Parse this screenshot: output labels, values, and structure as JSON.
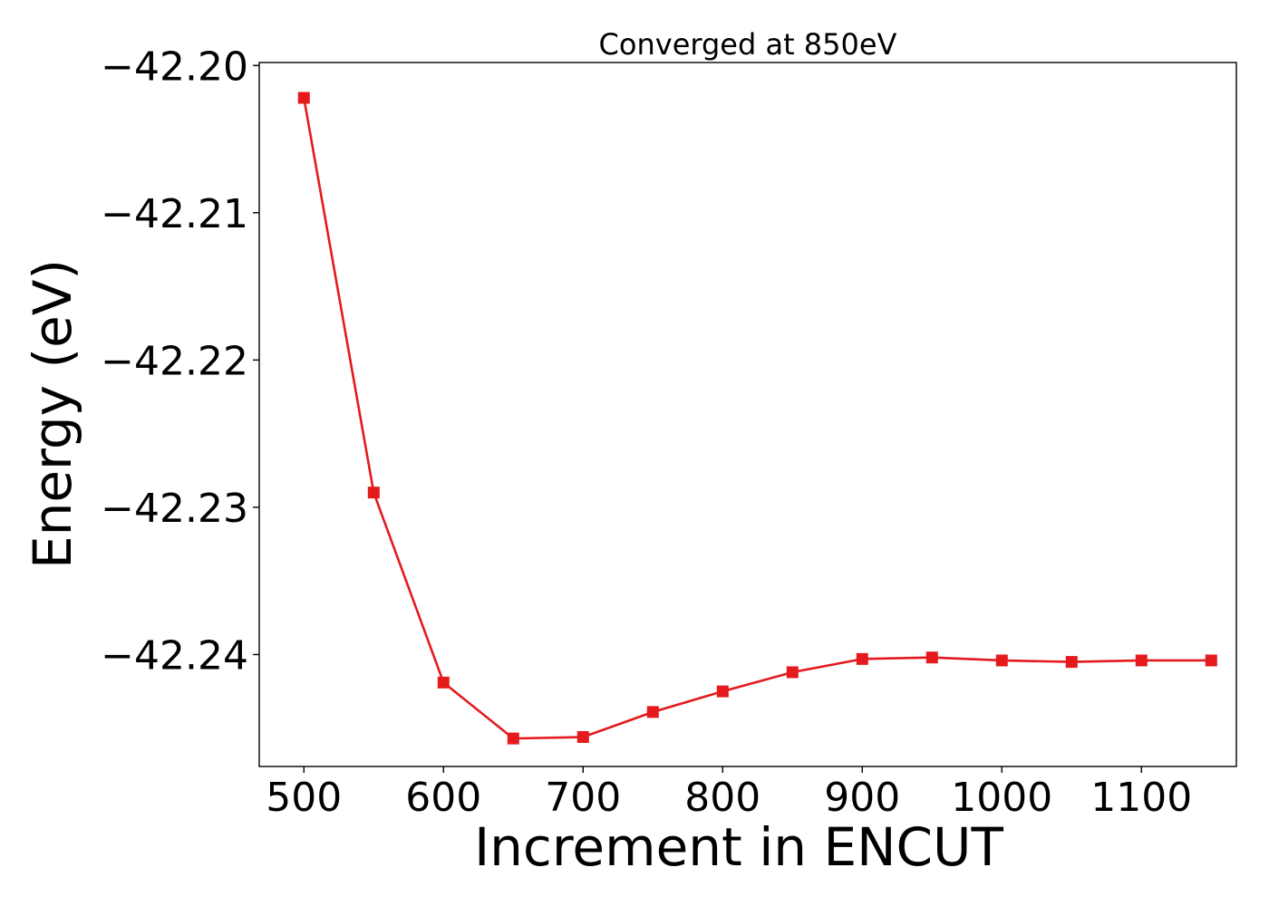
{
  "chart_data": {
    "type": "line",
    "title": "Converged at 850eV",
    "xlabel": "Increment in ENCUT",
    "ylabel": "Energy (eV)",
    "x": [
      500,
      550,
      600,
      650,
      700,
      750,
      800,
      850,
      900,
      950,
      1000,
      1050,
      1100,
      1150
    ],
    "series": [
      {
        "values": [
          -42.2022,
          -42.229,
          -42.2419,
          -42.2457,
          -42.2456,
          -42.2439,
          -42.2425,
          -42.2412,
          -42.2403,
          -42.2402,
          -42.2404,
          -42.2405,
          -42.2404,
          -42.2404
        ],
        "color": "#e41a1c",
        "marker": "square"
      }
    ],
    "xlim": [
      468,
      1168
    ],
    "ylim": [
      -42.2476,
      -42.1998
    ],
    "xticks": [
      500,
      600,
      700,
      800,
      900,
      1000,
      1100
    ],
    "xtick_labels": [
      "500",
      "600",
      "700",
      "800",
      "900",
      "1000",
      "1100"
    ],
    "yticks": [
      -42.2,
      -42.21,
      -42.22,
      -42.23,
      -42.24
    ],
    "ytick_labels": [
      "−42.20",
      "−42.21",
      "−42.22",
      "−42.23",
      "−42.24"
    ],
    "grid": false,
    "legend": "none"
  }
}
